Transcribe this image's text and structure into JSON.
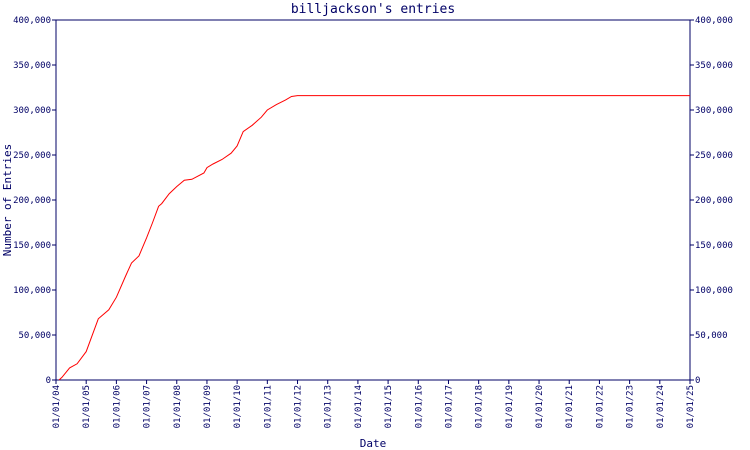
{
  "chart_data": {
    "type": "line",
    "title": "billjackson's entries",
    "xlabel": "Date",
    "ylabel": "Number of Entries",
    "color": "#ff0000",
    "x": [
      2004.1,
      2004.2,
      2004.45,
      2004.7,
      2005,
      2005.4,
      2005.75,
      2006,
      2006.3,
      2006.5,
      2006.75,
      2007,
      2007.2,
      2007.4,
      2007.5,
      2007.75,
      2008,
      2008.25,
      2008.5,
      2008.9,
      2009,
      2009.2,
      2009.5,
      2009.8,
      2010,
      2010.2,
      2010.5,
      2010.8,
      2011,
      2011.3,
      2011.6,
      2011.8,
      2012,
      2025
    ],
    "values": [
      0,
      3000,
      13500,
      18000,
      31500,
      68000,
      78000,
      92000,
      115000,
      130000,
      138000,
      158000,
      175000,
      193000,
      196000,
      207000,
      215000,
      222000,
      223000,
      230000,
      236000,
      240000,
      245000,
      252000,
      260000,
      276000,
      283000,
      292000,
      300000,
      306000,
      311000,
      315000,
      316000,
      316000
    ],
    "xlim": [
      2004,
      2025
    ],
    "xticks": [
      {
        "value": 2004,
        "label": "01/01/04"
      },
      {
        "value": 2005,
        "label": "01/01/05"
      },
      {
        "value": 2006,
        "label": "01/01/06"
      },
      {
        "value": 2007,
        "label": "01/01/07"
      },
      {
        "value": 2008,
        "label": "01/01/08"
      },
      {
        "value": 2009,
        "label": "01/01/09"
      },
      {
        "value": 2010,
        "label": "01/01/10"
      },
      {
        "value": 2011,
        "label": "01/01/11"
      },
      {
        "value": 2012,
        "label": "01/01/12"
      },
      {
        "value": 2013,
        "label": "01/01/13"
      },
      {
        "value": 2014,
        "label": "01/01/14"
      },
      {
        "value": 2015,
        "label": "01/01/15"
      },
      {
        "value": 2016,
        "label": "01/01/16"
      },
      {
        "value": 2017,
        "label": "01/01/17"
      },
      {
        "value": 2018,
        "label": "01/01/18"
      },
      {
        "value": 2019,
        "label": "01/01/19"
      },
      {
        "value": 2020,
        "label": "01/01/20"
      },
      {
        "value": 2021,
        "label": "01/01/21"
      },
      {
        "value": 2022,
        "label": "01/01/22"
      },
      {
        "value": 2023,
        "label": "01/01/23"
      },
      {
        "value": 2024,
        "label": "01/01/24"
      },
      {
        "value": 2025,
        "label": "01/01/25"
      }
    ],
    "ylim": [
      0,
      400000
    ],
    "yticks": [
      0,
      {
        "value": 50000,
        "label": "50,000"
      },
      {
        "value": 100000,
        "label": "100,000"
      },
      {
        "value": 150000,
        "label": "150,000"
      },
      {
        "value": 200000,
        "label": "200,000"
      },
      {
        "value": 250000,
        "label": "250,000"
      },
      {
        "value": 300000,
        "label": "300,000"
      },
      {
        "value": 350000,
        "label": "350,000"
      },
      {
        "value": 400000,
        "label": "400,000"
      }
    ],
    "y2lim": [
      0,
      400000
    ],
    "y2ticks": [
      0,
      {
        "value": 50000,
        "label": "50,000"
      },
      {
        "value": 100000,
        "label": "100,000"
      },
      {
        "value": 150000,
        "label": "150,000"
      },
      {
        "value": 200000,
        "label": "200,000"
      },
      {
        "value": 250000,
        "label": "250,000"
      },
      {
        "value": 300000,
        "label": "300,000"
      },
      {
        "value": 350000,
        "label": "350,000"
      },
      {
        "value": 400000,
        "label": "400,000"
      }
    ]
  }
}
